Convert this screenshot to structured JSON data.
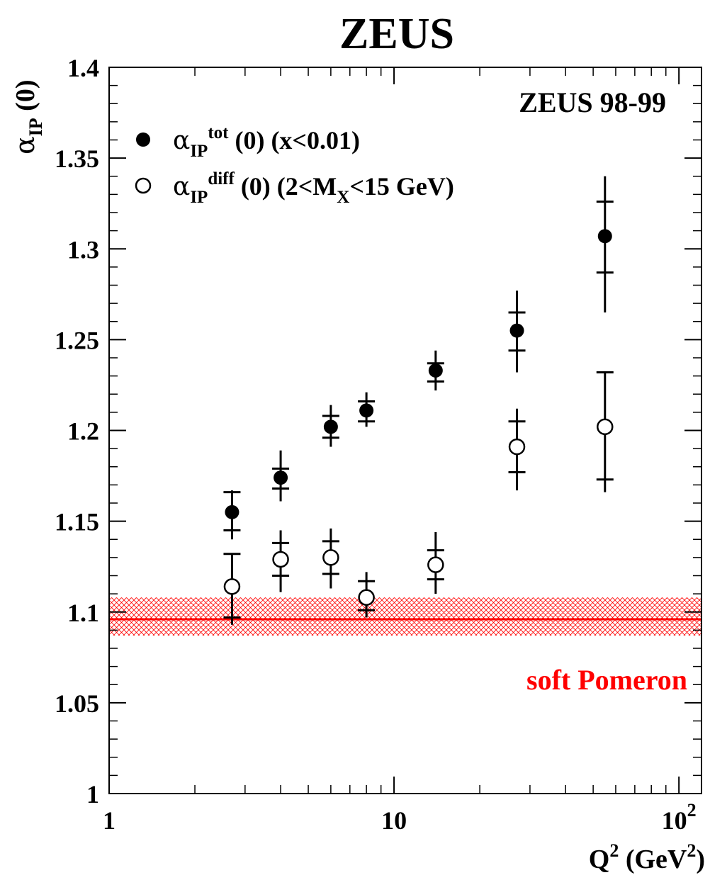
{
  "chart_data": {
    "type": "scatter",
    "title": "ZEUS",
    "subtitle": "ZEUS 98-99",
    "x_scale": "log",
    "xlim": [
      1,
      120
    ],
    "ylim": [
      1.0,
      1.4
    ],
    "x_ticks": [
      {
        "value": 1,
        "label": "1"
      },
      {
        "value": 10,
        "label": "10"
      },
      {
        "value": 100,
        "label": "10",
        "sup": "2"
      }
    ],
    "y_ticks": [
      {
        "value": 1.0,
        "label": "1"
      },
      {
        "value": 1.05,
        "label": "1.05"
      },
      {
        "value": 1.1,
        "label": "1.1"
      },
      {
        "value": 1.15,
        "label": "1.15"
      },
      {
        "value": 1.2,
        "label": "1.2"
      },
      {
        "value": 1.25,
        "label": "1.25"
      },
      {
        "value": 1.3,
        "label": "1.3"
      },
      {
        "value": 1.35,
        "label": "1.35"
      },
      {
        "value": 1.4,
        "label": "1.4"
      }
    ],
    "xlabel": {
      "main": "Q",
      "sup": "2",
      "rest1": " (GeV",
      "sup2": "2",
      "rest2": ")"
    },
    "ylabel": {
      "alpha": "α",
      "sub": "IP",
      "rest": " (0)"
    },
    "grid": false,
    "legend_position": "top-left",
    "series": [
      {
        "key": "tot",
        "marker": "filled-circle",
        "color": "#000000",
        "legend": {
          "alpha": "α",
          "sub": "IP",
          "sup": "tot",
          "rest": " (0) (x<0.01)"
        },
        "points": [
          {
            "x": 2.7,
            "y": 1.155,
            "stat": [
              1.145,
              1.166
            ],
            "tot": [
              1.14,
              1.167
            ]
          },
          {
            "x": 4.0,
            "y": 1.174,
            "stat": [
              1.168,
              1.179
            ],
            "tot": [
              1.161,
              1.189
            ]
          },
          {
            "x": 6.0,
            "y": 1.202,
            "stat": [
              1.196,
              1.208
            ],
            "tot": [
              1.191,
              1.214
            ]
          },
          {
            "x": 8.0,
            "y": 1.211,
            "stat": [
              1.205,
              1.216
            ],
            "tot": [
              1.202,
              1.221
            ]
          },
          {
            "x": 14.0,
            "y": 1.233,
            "stat": [
              1.227,
              1.237
            ],
            "tot": [
              1.222,
              1.244
            ]
          },
          {
            "x": 27.0,
            "y": 1.255,
            "stat": [
              1.244,
              1.265
            ],
            "tot": [
              1.232,
              1.277
            ]
          },
          {
            "x": 55.0,
            "y": 1.307,
            "stat": [
              1.287,
              1.326
            ],
            "tot": [
              1.265,
              1.34
            ]
          }
        ]
      },
      {
        "key": "diff",
        "marker": "open-circle",
        "color": "#000000",
        "legend": {
          "alpha": "α",
          "sub": "IP",
          "sup": "diff",
          "rest": " (0) (2<M",
          "sub2": "X",
          "rest2": "<15 GeV)"
        },
        "points": [
          {
            "x": 2.7,
            "y": 1.114,
            "stat": [
              1.097,
              1.132
            ],
            "tot": [
              1.093,
              1.132
            ]
          },
          {
            "x": 4.0,
            "y": 1.129,
            "stat": [
              1.12,
              1.138
            ],
            "tot": [
              1.111,
              1.145
            ]
          },
          {
            "x": 6.0,
            "y": 1.13,
            "stat": [
              1.121,
              1.139
            ],
            "tot": [
              1.113,
              1.146
            ]
          },
          {
            "x": 8.0,
            "y": 1.108,
            "stat": [
              1.101,
              1.117
            ],
            "tot": [
              1.097,
              1.122
            ]
          },
          {
            "x": 14.0,
            "y": 1.126,
            "stat": [
              1.118,
              1.134
            ],
            "tot": [
              1.11,
              1.144
            ]
          },
          {
            "x": 27.0,
            "y": 1.191,
            "stat": [
              1.177,
              1.205
            ],
            "tot": [
              1.167,
              1.212
            ]
          },
          {
            "x": 55.0,
            "y": 1.202,
            "stat": [
              1.173,
              1.232
            ],
            "tot": [
              1.166,
              1.232
            ]
          }
        ]
      }
    ],
    "band": {
      "label": "soft Pomeron",
      "center": 1.096,
      "low": 1.087,
      "high": 1.108,
      "color": "#ff0000"
    }
  }
}
